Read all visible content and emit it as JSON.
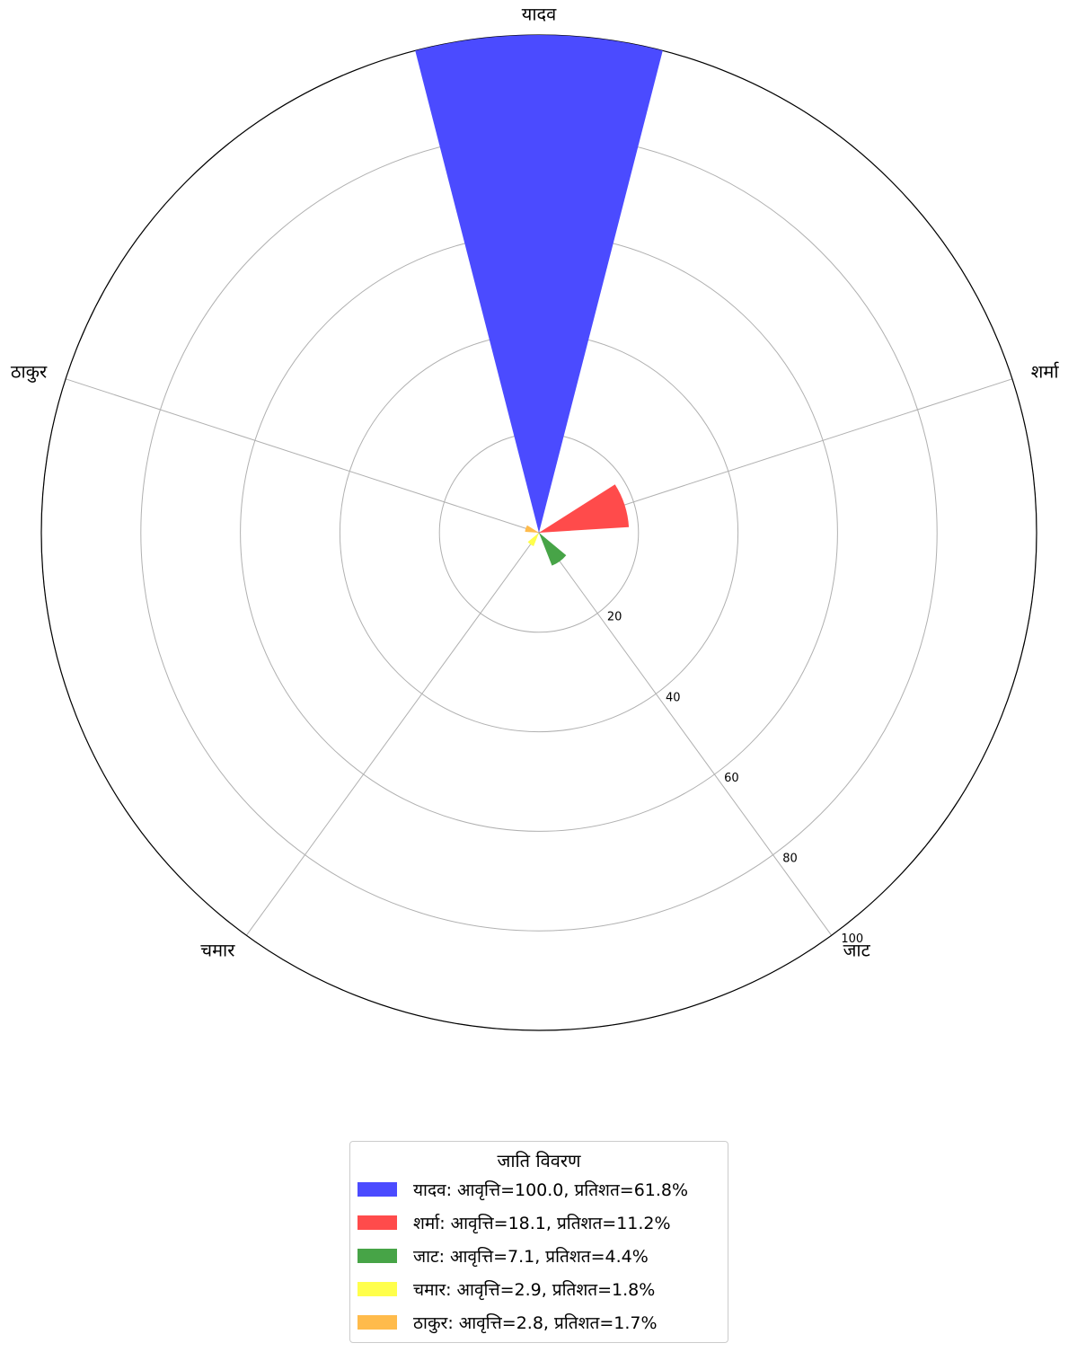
{
  "chart_data": {
    "type": "polar-bar",
    "categories": [
      "यादव",
      "शर्मा",
      "जाट",
      "चमार",
      "ठाकुर"
    ],
    "values": [
      100.0,
      18.1,
      7.1,
      2.9,
      2.8
    ],
    "percentages": [
      61.8,
      11.2,
      4.4,
      1.8,
      1.7
    ],
    "colors": [
      "#4b4bff",
      "#ff4b4b",
      "#47a447",
      "#ffff4b",
      "#ffbb4b"
    ],
    "radial_ticks": [
      "20",
      "40",
      "60",
      "80",
      "100"
    ],
    "radial_tick_values": [
      20,
      40,
      60,
      80,
      100
    ],
    "rlim": [
      0,
      100
    ],
    "grid": true,
    "legend_placement": "bottom-center",
    "legend": {
      "title": "जाति विवरण",
      "entries": [
        "यादव: आवृत्ति=100.0, प्रतिशत=61.8%",
        "शर्मा: आवृत्ति=18.1, प्रतिशत=11.2%",
        "जाट: आवृत्ति=7.1, प्रतिशत=4.4%",
        "चमार: आवृत्ति=2.9, प्रतिशत=1.8%",
        "ठाकुर: आवृत्ति=2.8, प्रतिशत=1.7%"
      ]
    }
  }
}
